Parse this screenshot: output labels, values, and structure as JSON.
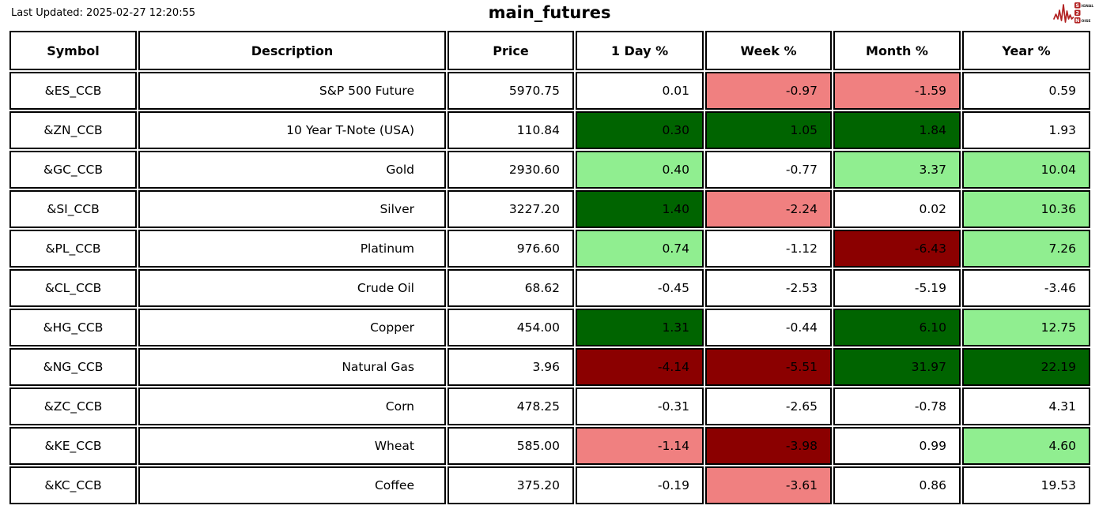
{
  "header": {
    "last_updated": "Last Updated: 2025-02-27 12:20:55",
    "title": "main_futures"
  },
  "logo": {
    "name": "signal-2-noise-logo",
    "line1_badge": "S",
    "line1_rest": "IGNAL",
    "line2_badge": "2",
    "line3_badge": "N",
    "line3_rest": "OISE",
    "accent_color": "#B22222"
  },
  "palette": {
    "white": "#FFFFFF",
    "light_green": "#90EE90",
    "dark_green": "#006400",
    "light_red": "#F08080",
    "dark_red": "#8B0000"
  },
  "chart_data": {
    "type": "table",
    "title": "main_futures",
    "columns": [
      "Symbol",
      "Description",
      "Price",
      "1 Day %",
      "Week %",
      "Month %",
      "Year %"
    ],
    "rows": [
      {
        "symbol": "&ES_CCB",
        "description": "S&P 500 Future",
        "price": "5970.75",
        "pcts": [
          {
            "value": "0.01",
            "bg": "white"
          },
          {
            "value": "-0.97",
            "bg": "light_red"
          },
          {
            "value": "-1.59",
            "bg": "light_red"
          },
          {
            "value": "0.59",
            "bg": "white"
          }
        ]
      },
      {
        "symbol": "&ZN_CCB",
        "description": "10 Year T-Note (USA)",
        "price": "110.84",
        "pcts": [
          {
            "value": "0.30",
            "bg": "dark_green"
          },
          {
            "value": "1.05",
            "bg": "dark_green"
          },
          {
            "value": "1.84",
            "bg": "dark_green"
          },
          {
            "value": "1.93",
            "bg": "white"
          }
        ]
      },
      {
        "symbol": "&GC_CCB",
        "description": "Gold",
        "price": "2930.60",
        "pcts": [
          {
            "value": "0.40",
            "bg": "light_green"
          },
          {
            "value": "-0.77",
            "bg": "white"
          },
          {
            "value": "3.37",
            "bg": "light_green"
          },
          {
            "value": "10.04",
            "bg": "light_green"
          }
        ]
      },
      {
        "symbol": "&SI_CCB",
        "description": "Silver",
        "price": "3227.20",
        "pcts": [
          {
            "value": "1.40",
            "bg": "dark_green"
          },
          {
            "value": "-2.24",
            "bg": "light_red"
          },
          {
            "value": "0.02",
            "bg": "white"
          },
          {
            "value": "10.36",
            "bg": "light_green"
          }
        ]
      },
      {
        "symbol": "&PL_CCB",
        "description": "Platinum",
        "price": "976.60",
        "pcts": [
          {
            "value": "0.74",
            "bg": "light_green"
          },
          {
            "value": "-1.12",
            "bg": "white"
          },
          {
            "value": "-6.43",
            "bg": "dark_red"
          },
          {
            "value": "7.26",
            "bg": "light_green"
          }
        ]
      },
      {
        "symbol": "&CL_CCB",
        "description": "Crude Oil",
        "price": "68.62",
        "pcts": [
          {
            "value": "-0.45",
            "bg": "white"
          },
          {
            "value": "-2.53",
            "bg": "white"
          },
          {
            "value": "-5.19",
            "bg": "white"
          },
          {
            "value": "-3.46",
            "bg": "white"
          }
        ]
      },
      {
        "symbol": "&HG_CCB",
        "description": "Copper",
        "price": "454.00",
        "pcts": [
          {
            "value": "1.31",
            "bg": "dark_green"
          },
          {
            "value": "-0.44",
            "bg": "white"
          },
          {
            "value": "6.10",
            "bg": "dark_green"
          },
          {
            "value": "12.75",
            "bg": "light_green"
          }
        ]
      },
      {
        "symbol": "&NG_CCB",
        "description": "Natural Gas",
        "price": "3.96",
        "pcts": [
          {
            "value": "-4.14",
            "bg": "dark_red"
          },
          {
            "value": "-5.51",
            "bg": "dark_red"
          },
          {
            "value": "31.97",
            "bg": "dark_green"
          },
          {
            "value": "22.19",
            "bg": "dark_green"
          }
        ]
      },
      {
        "symbol": "&ZC_CCB",
        "description": "Corn",
        "price": "478.25",
        "pcts": [
          {
            "value": "-0.31",
            "bg": "white"
          },
          {
            "value": "-2.65",
            "bg": "white"
          },
          {
            "value": "-0.78",
            "bg": "white"
          },
          {
            "value": "4.31",
            "bg": "white"
          }
        ]
      },
      {
        "symbol": "&KE_CCB",
        "description": "Wheat",
        "price": "585.00",
        "pcts": [
          {
            "value": "-1.14",
            "bg": "light_red"
          },
          {
            "value": "-3.98",
            "bg": "dark_red"
          },
          {
            "value": "0.99",
            "bg": "white"
          },
          {
            "value": "4.60",
            "bg": "light_green"
          }
        ]
      },
      {
        "symbol": "&KC_CCB",
        "description": "Coffee",
        "price": "375.20",
        "pcts": [
          {
            "value": "-0.19",
            "bg": "white"
          },
          {
            "value": "-3.61",
            "bg": "light_red"
          },
          {
            "value": "0.86",
            "bg": "white"
          },
          {
            "value": "19.53",
            "bg": "white"
          }
        ]
      }
    ]
  }
}
